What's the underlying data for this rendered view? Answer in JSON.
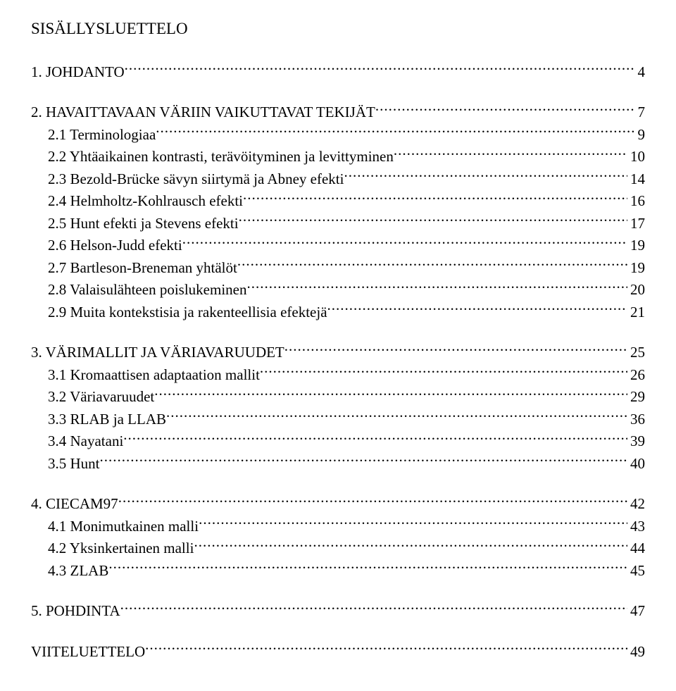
{
  "heading": "SISÄLLYSLUETTELO",
  "sections": [
    {
      "lines": [
        {
          "label": "1.  JOHDANTO",
          "page": "4",
          "indent": 1
        }
      ]
    },
    {
      "lines": [
        {
          "label": "2.  HAVAITTAVAAN VÄRIIN VAIKUTTAVAT TEKIJÄT",
          "page": "7",
          "indent": 1
        },
        {
          "label": "2.1  Terminologiaa",
          "page": "9",
          "indent": 2
        },
        {
          "label": "2.2  Yhtäaikainen kontrasti, terävöityminen ja levittyminen",
          "page": "10",
          "indent": 2
        },
        {
          "label": "2.3  Bezold-Brücke sävyn siirtymä ja Abney efekti",
          "page": "14",
          "indent": 2
        },
        {
          "label": "2.4  Helmholtz-Kohlrausch efekti",
          "page": "16",
          "indent": 2
        },
        {
          "label": "2.5  Hunt efekti  ja Stevens efekti",
          "page": "17",
          "indent": 2
        },
        {
          "label": "2.6  Helson-Judd efekti",
          "page": "19",
          "indent": 2
        },
        {
          "label": "2.7  Bartleson-Breneman yhtälöt",
          "page": "19",
          "indent": 2
        },
        {
          "label": "2.8  Valaisulähteen poislukeminen",
          "page": "20",
          "indent": 2
        },
        {
          "label": "2.9  Muita kontekstisia ja rakenteellisia efektejä",
          "page": "21",
          "indent": 2
        }
      ]
    },
    {
      "lines": [
        {
          "label": "3.  VÄRIMALLIT JA VÄRIAVARUUDET",
          "page": "25",
          "indent": 1
        },
        {
          "label": "3.1  Kromaattisen adaptaation mallit",
          "page": "26",
          "indent": 2
        },
        {
          "label": "3.2  Väriavaruudet",
          "page": "29",
          "indent": 2
        },
        {
          "label": "3.3  RLAB ja LLAB",
          "page": "36",
          "indent": 2
        },
        {
          "label": "3.4  Nayatani",
          "page": "39",
          "indent": 2
        },
        {
          "label": "3.5  Hunt",
          "page": "40",
          "indent": 2
        }
      ]
    },
    {
      "lines": [
        {
          "label": "4.  CIECAM97",
          "page": "42",
          "indent": 1
        },
        {
          "label": "4.1  Monimutkainen malli",
          "page": "43",
          "indent": 2
        },
        {
          "label": "4.2  Yksinkertainen malli",
          "page": "44",
          "indent": 2
        },
        {
          "label": "4.3  ZLAB",
          "page": "45",
          "indent": 2
        }
      ]
    },
    {
      "lines": [
        {
          "label": "5.  POHDINTA",
          "page": "47",
          "indent": 1
        }
      ]
    },
    {
      "lines": [
        {
          "label": "VIITELUETTELO",
          "page": "49",
          "indent": 1
        }
      ]
    }
  ]
}
